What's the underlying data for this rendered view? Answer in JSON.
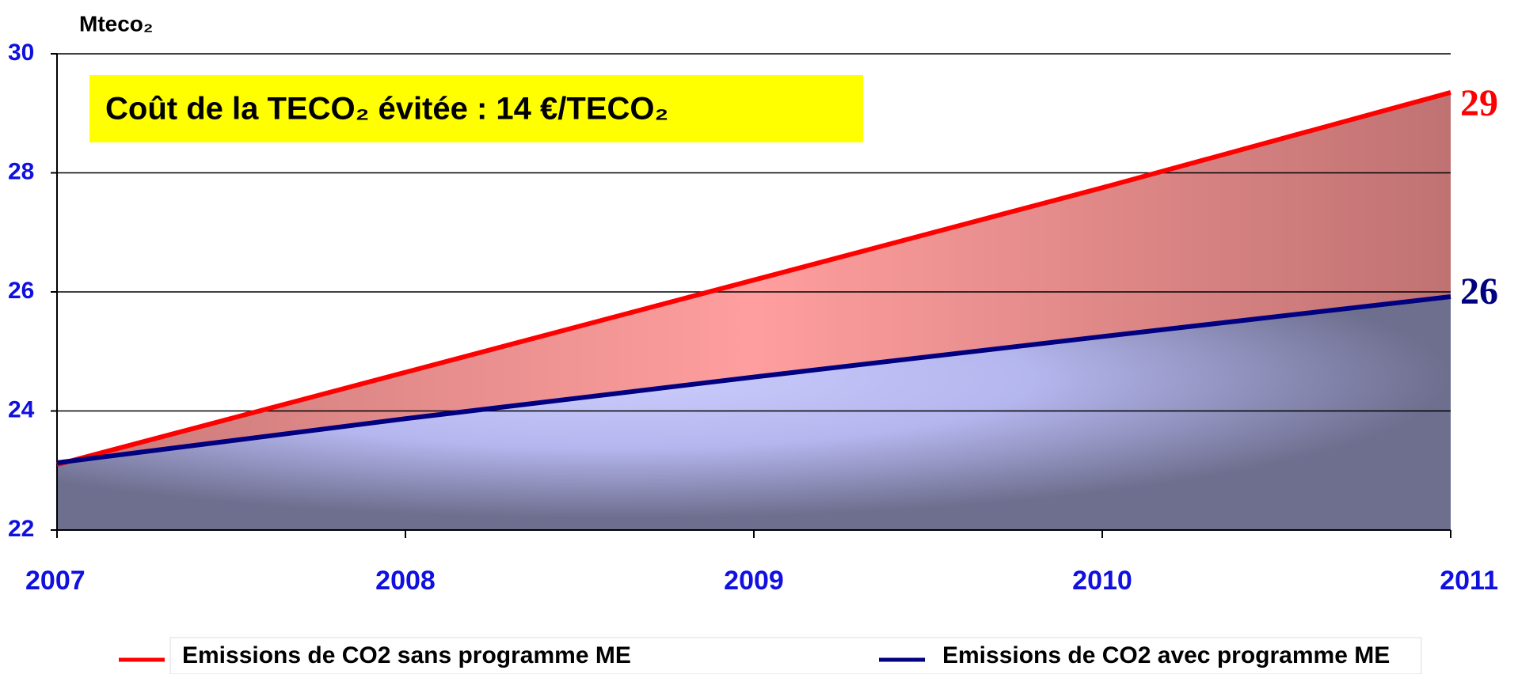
{
  "chart_data": {
    "type": "area-line",
    "ylabel": "Mteco₂",
    "annotation": "Coût de la TECO₂ évitée : 14 €/TECO₂",
    "categories": [
      "2007",
      "2008",
      "2009",
      "2010",
      "2011"
    ],
    "series": [
      {
        "name": "Emissions de CO2 sans programme ME",
        "color": "#ff0000",
        "values": [
          23.1,
          24.65,
          26.2,
          27.75,
          29.35
        ],
        "value_labels": [
          null,
          null,
          null,
          null,
          "29"
        ]
      },
      {
        "name": "Emissions de CO2 avec programme ME",
        "color": "#000080",
        "values": [
          23.13,
          23.87,
          24.57,
          25.25,
          25.92
        ],
        "value_labels": [
          null,
          null,
          null,
          null,
          "26"
        ]
      }
    ],
    "ylim": [
      22,
      30
    ],
    "yticks": [
      22,
      24,
      26,
      28,
      30
    ],
    "grid": true,
    "legend": "bottom"
  }
}
